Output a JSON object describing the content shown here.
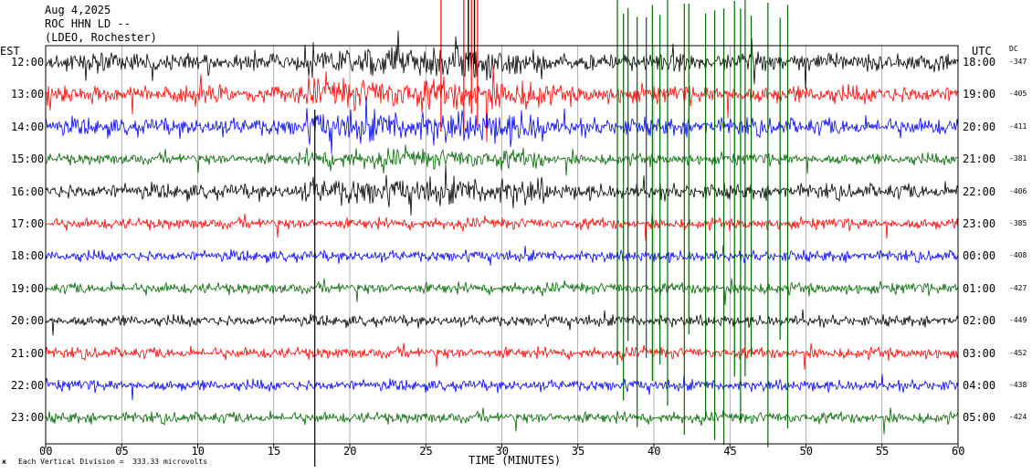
{
  "header": {
    "date": "Aug 4,2025",
    "station": "ROC HHN LD --",
    "network": "(LDEO, Rochester)"
  },
  "left_axis_label": "EST",
  "right_axis_label": "UTC",
  "dc_label": "DC",
  "footer": {
    "mark": "ж",
    "scale_text": "Each Vertical Division =  333.33 microvolts"
  },
  "colors": {
    "trace_cycle": [
      "#000000",
      "#ff0000",
      "#0000ff",
      "#006600"
    ],
    "grid": "#808080"
  },
  "chart_data": {
    "type": "line",
    "xlabel": "TIME (MINUTES)",
    "xlim": [
      0,
      60
    ],
    "x_ticks": [
      "00",
      "05",
      "10",
      "15",
      "20",
      "25",
      "30",
      "35",
      "40",
      "45",
      "50",
      "55",
      "60"
    ],
    "rows": [
      {
        "est": "12:00",
        "utc": "18:00",
        "dc": "-347"
      },
      {
        "est": "13:00",
        "utc": "19:00",
        "dc": "-405"
      },
      {
        "est": "14:00",
        "utc": "20:00",
        "dc": "-411"
      },
      {
        "est": "15:00",
        "utc": "21:00",
        "dc": "-381"
      },
      {
        "est": "16:00",
        "utc": "22:00",
        "dc": "-406"
      },
      {
        "est": "17:00",
        "utc": "23:00",
        "dc": "-385"
      },
      {
        "est": "18:00",
        "utc": "00:00",
        "dc": "-408"
      },
      {
        "est": "19:00",
        "utc": "01:00",
        "dc": "-427"
      },
      {
        "est": "20:00",
        "utc": "02:00",
        "dc": "-449"
      },
      {
        "est": "21:00",
        "utc": "03:00",
        "dc": "-452"
      },
      {
        "est": "22:00",
        "utc": "04:00",
        "dc": "-438"
      },
      {
        "est": "23:00",
        "utc": "05:00",
        "dc": "-424"
      }
    ]
  }
}
